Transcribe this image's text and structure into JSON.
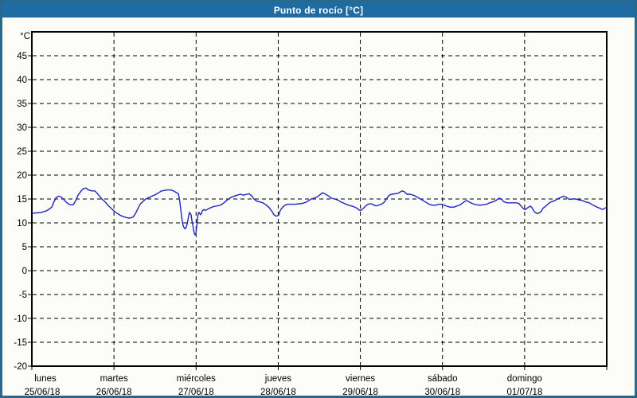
{
  "title": "Punto de rocío [°C]",
  "colors": {
    "titlebar_bg": "#1f6ba3",
    "frame": "#27688f",
    "title_text": "#ffffff",
    "plot_bg": "#fcfdf8",
    "grid": "#000000",
    "axis": "#000000",
    "line": "#2222c0"
  },
  "chart_data": {
    "type": "line",
    "title": "Punto de rocío [°C]",
    "xlabel": "",
    "ylabel": "°C",
    "ylim": [
      -20,
      50
    ],
    "yticks": [
      45,
      40,
      35,
      30,
      25,
      20,
      15,
      10,
      5,
      0,
      -5,
      -10,
      -15,
      -20
    ],
    "grid": true,
    "legend_position": "none",
    "x_days": [
      {
        "name": "lunes",
        "date": "25/06/18"
      },
      {
        "name": "martes",
        "date": "26/06/18"
      },
      {
        "name": "miércoles",
        "date": "27/06/18"
      },
      {
        "name": "jueves",
        "date": "28/06/18"
      },
      {
        "name": "viernes",
        "date": "29/06/18"
      },
      {
        "name": "sábado",
        "date": "30/06/18"
      },
      {
        "name": "domingo",
        "date": "01/07/18"
      }
    ],
    "series": [
      {
        "name": "Punto de rocío",
        "units": "°C",
        "x_units": "days_from_start",
        "points": [
          [
            0.0,
            12.0
          ],
          [
            0.058,
            12.1
          ],
          [
            0.116,
            12.2
          ],
          [
            0.175,
            12.5
          ],
          [
            0.213,
            12.9
          ],
          [
            0.242,
            13.3
          ],
          [
            0.271,
            14.5
          ],
          [
            0.301,
            15.4
          ],
          [
            0.33,
            15.6
          ],
          [
            0.359,
            15.4
          ],
          [
            0.388,
            14.9
          ],
          [
            0.427,
            14.2
          ],
          [
            0.465,
            13.8
          ],
          [
            0.504,
            13.8
          ],
          [
            0.533,
            14.6
          ],
          [
            0.562,
            15.8
          ],
          [
            0.601,
            16.7
          ],
          [
            0.63,
            17.2
          ],
          [
            0.659,
            17.3
          ],
          [
            0.688,
            16.9
          ],
          [
            0.727,
            16.7
          ],
          [
            0.766,
            16.7
          ],
          [
            0.795,
            16.2
          ],
          [
            0.824,
            15.6
          ],
          [
            0.853,
            15.0
          ],
          [
            0.892,
            14.4
          ],
          [
            0.931,
            13.6
          ],
          [
            0.97,
            13.0
          ],
          [
            0.999,
            12.5
          ],
          [
            1.037,
            12.0
          ],
          [
            1.076,
            11.6
          ],
          [
            1.115,
            11.3
          ],
          [
            1.154,
            11.1
          ],
          [
            1.193,
            11.0
          ],
          [
            1.231,
            11.2
          ],
          [
            1.26,
            11.9
          ],
          [
            1.289,
            12.9
          ],
          [
            1.319,
            13.9
          ],
          [
            1.348,
            14.4
          ],
          [
            1.386,
            15.0
          ],
          [
            1.425,
            15.3
          ],
          [
            1.464,
            15.6
          ],
          [
            1.503,
            15.9
          ],
          [
            1.542,
            16.3
          ],
          [
            1.58,
            16.7
          ],
          [
            1.619,
            16.8
          ],
          [
            1.648,
            16.9
          ],
          [
            1.687,
            16.9
          ],
          [
            1.726,
            16.7
          ],
          [
            1.755,
            16.4
          ],
          [
            1.784,
            16.1
          ],
          [
            1.794,
            15.3
          ],
          [
            1.803,
            14.2
          ],
          [
            1.813,
            12.8
          ],
          [
            1.823,
            11.4
          ],
          [
            1.832,
            10.3
          ],
          [
            1.842,
            9.4
          ],
          [
            1.861,
            8.8
          ],
          [
            1.871,
            8.8
          ],
          [
            1.891,
            9.7
          ],
          [
            1.91,
            11.5
          ],
          [
            1.92,
            12.2
          ],
          [
            1.939,
            11.7
          ],
          [
            1.949,
            10.5
          ],
          [
            1.958,
            9.7
          ],
          [
            1.968,
            8.6
          ],
          [
            1.978,
            7.8
          ],
          [
            1.988,
            7.5
          ],
          [
            1.997,
            7.8
          ],
          [
            2.007,
            9.2
          ],
          [
            2.017,
            10.8
          ],
          [
            2.026,
            12.0
          ],
          [
            2.036,
            12.2
          ],
          [
            2.046,
            11.9
          ],
          [
            2.055,
            11.7
          ],
          [
            2.065,
            12.0
          ],
          [
            2.075,
            12.5
          ],
          [
            2.094,
            12.8
          ],
          [
            2.114,
            12.6
          ],
          [
            2.133,
            12.8
          ],
          [
            2.152,
            13.0
          ],
          [
            2.181,
            13.2
          ],
          [
            2.21,
            13.4
          ],
          [
            2.24,
            13.5
          ],
          [
            2.269,
            13.6
          ],
          [
            2.307,
            13.8
          ],
          [
            2.346,
            14.3
          ],
          [
            2.385,
            14.9
          ],
          [
            2.424,
            15.3
          ],
          [
            2.463,
            15.6
          ],
          [
            2.501,
            15.8
          ],
          [
            2.54,
            16.0
          ],
          [
            2.579,
            15.8
          ],
          [
            2.618,
            16.0
          ],
          [
            2.647,
            16.1
          ],
          [
            2.676,
            15.7
          ],
          [
            2.705,
            15.0
          ],
          [
            2.734,
            14.6
          ],
          [
            2.773,
            14.4
          ],
          [
            2.812,
            14.2
          ],
          [
            2.85,
            13.8
          ],
          [
            2.889,
            13.2
          ],
          [
            2.928,
            12.3
          ],
          [
            2.947,
            11.7
          ],
          [
            2.976,
            11.4
          ],
          [
            3.005,
            11.6
          ],
          [
            3.025,
            12.6
          ],
          [
            3.054,
            13.3
          ],
          [
            3.083,
            13.7
          ],
          [
            3.112,
            13.9
          ],
          [
            3.161,
            13.9
          ],
          [
            3.209,
            13.9
          ],
          [
            3.258,
            14.0
          ],
          [
            3.296,
            14.1
          ],
          [
            3.335,
            14.3
          ],
          [
            3.374,
            14.7
          ],
          [
            3.403,
            15.0
          ],
          [
            3.442,
            15.2
          ],
          [
            3.48,
            15.5
          ],
          [
            3.51,
            15.9
          ],
          [
            3.539,
            16.3
          ],
          [
            3.568,
            16.1
          ],
          [
            3.607,
            15.7
          ],
          [
            3.645,
            15.2
          ],
          [
            3.684,
            15.0
          ],
          [
            3.723,
            14.8
          ],
          [
            3.762,
            14.4
          ],
          [
            3.8,
            14.1
          ],
          [
            3.839,
            13.8
          ],
          [
            3.878,
            13.6
          ],
          [
            3.917,
            13.4
          ],
          [
            3.956,
            13.1
          ],
          [
            3.985,
            12.7
          ],
          [
            4.004,
            12.6
          ],
          [
            4.033,
            13.0
          ],
          [
            4.062,
            13.5
          ],
          [
            4.091,
            13.9
          ],
          [
            4.12,
            14.0
          ],
          [
            4.15,
            13.9
          ],
          [
            4.179,
            13.6
          ],
          [
            4.208,
            13.6
          ],
          [
            4.237,
            13.8
          ],
          [
            4.266,
            14.0
          ],
          [
            4.295,
            14.4
          ],
          [
            4.324,
            15.2
          ],
          [
            4.353,
            15.8
          ],
          [
            4.382,
            16.0
          ],
          [
            4.421,
            16.1
          ],
          [
            4.46,
            16.2
          ],
          [
            4.489,
            16.5
          ],
          [
            4.508,
            16.7
          ],
          [
            4.537,
            16.5
          ],
          [
            4.566,
            16.0
          ],
          [
            4.605,
            16.0
          ],
          [
            4.644,
            15.8
          ],
          [
            4.683,
            15.5
          ],
          [
            4.722,
            15.1
          ],
          [
            4.76,
            14.7
          ],
          [
            4.799,
            14.3
          ],
          [
            4.838,
            13.9
          ],
          [
            4.877,
            13.7
          ],
          [
            4.916,
            13.7
          ],
          [
            4.954,
            13.9
          ],
          [
            4.993,
            13.9
          ],
          [
            5.022,
            13.7
          ],
          [
            5.051,
            13.5
          ],
          [
            5.09,
            13.3
          ],
          [
            5.139,
            13.3
          ],
          [
            5.187,
            13.6
          ],
          [
            5.226,
            13.9
          ],
          [
            5.264,
            14.4
          ],
          [
            5.293,
            14.7
          ],
          [
            5.332,
            14.3
          ],
          [
            5.371,
            14.0
          ],
          [
            5.41,
            13.8
          ],
          [
            5.458,
            13.7
          ],
          [
            5.497,
            13.8
          ],
          [
            5.536,
            13.9
          ],
          [
            5.575,
            14.2
          ],
          [
            5.613,
            14.4
          ],
          [
            5.652,
            14.7
          ],
          [
            5.691,
            15.2
          ],
          [
            5.72,
            14.9
          ],
          [
            5.749,
            14.4
          ],
          [
            5.788,
            14.2
          ],
          [
            5.827,
            14.2
          ],
          [
            5.866,
            14.2
          ],
          [
            5.905,
            14.2
          ],
          [
            5.934,
            14.0
          ],
          [
            5.953,
            13.6
          ],
          [
            5.973,
            13.2
          ],
          [
            5.992,
            12.9
          ],
          [
            6.011,
            12.8
          ],
          [
            6.031,
            13.1
          ],
          [
            6.05,
            13.3
          ],
          [
            6.07,
            13.5
          ],
          [
            6.089,
            13.2
          ],
          [
            6.109,
            12.6
          ],
          [
            6.128,
            12.2
          ],
          [
            6.147,
            12.0
          ],
          [
            6.167,
            12.0
          ],
          [
            6.186,
            12.2
          ],
          [
            6.205,
            12.5
          ],
          [
            6.225,
            13.1
          ],
          [
            6.244,
            13.3
          ],
          [
            6.263,
            13.6
          ],
          [
            6.283,
            13.9
          ],
          [
            6.302,
            14.2
          ],
          [
            6.322,
            14.4
          ],
          [
            6.36,
            14.6
          ],
          [
            6.399,
            15.0
          ],
          [
            6.438,
            15.3
          ],
          [
            6.477,
            15.6
          ],
          [
            6.515,
            15.3
          ],
          [
            6.545,
            14.9
          ],
          [
            6.583,
            15.0
          ],
          [
            6.622,
            15.0
          ],
          [
            6.661,
            14.8
          ],
          [
            6.7,
            14.7
          ],
          [
            6.738,
            14.4
          ],
          [
            6.787,
            14.2
          ],
          [
            6.835,
            13.7
          ],
          [
            6.884,
            13.3
          ],
          [
            6.923,
            13.0
          ],
          [
            6.952,
            12.8
          ],
          [
            6.991,
            13.2
          ]
        ]
      }
    ]
  }
}
